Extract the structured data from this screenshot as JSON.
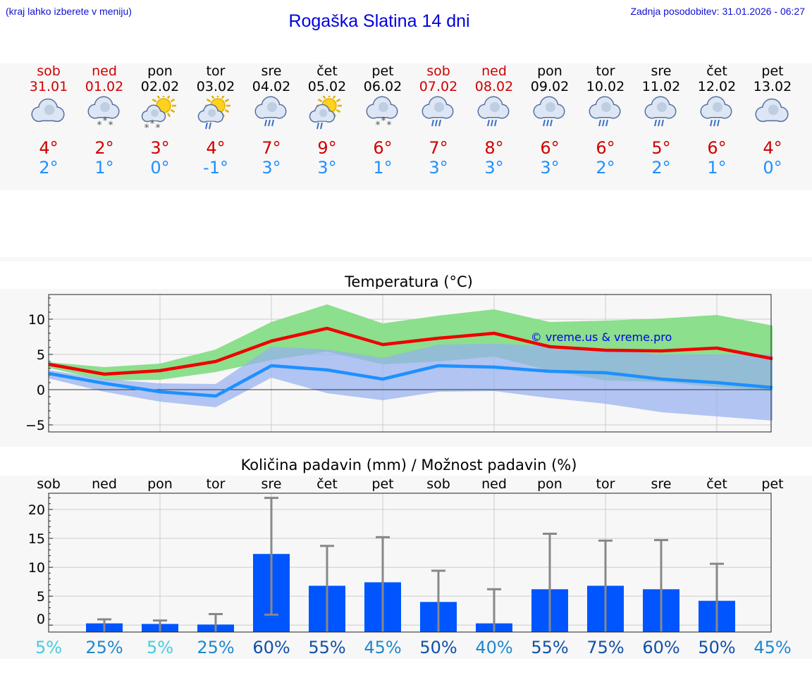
{
  "header": {
    "note": "(kraj lahko izberete v meniju)",
    "title": "Rogaška Slatina 14 dni",
    "updated": "Zadnja posodobitev: 31.01.2026 - 06:27"
  },
  "colors": {
    "weekend": "#d00000",
    "tmax": "#d00000",
    "tmin": "#1e90ff",
    "bar": "#0055ff"
  },
  "days": [
    {
      "name": "sob",
      "date": "31.01",
      "weekend": true,
      "icon": "cloud-icon",
      "tmax": "4°",
      "tmin": "2°"
    },
    {
      "name": "ned",
      "date": "01.02",
      "weekend": true,
      "icon": "cloud-snow-icon",
      "tmax": "2°",
      "tmin": "1°"
    },
    {
      "name": "pon",
      "date": "02.02",
      "weekend": false,
      "icon": "sun-cloud-snow-icon",
      "tmax": "3°",
      "tmin": "0°"
    },
    {
      "name": "tor",
      "date": "03.02",
      "weekend": false,
      "icon": "sun-cloud-rain-icon",
      "tmax": "4°",
      "tmin": "-1°"
    },
    {
      "name": "sre",
      "date": "04.02",
      "weekend": false,
      "icon": "cloud-rain-icon",
      "tmax": "7°",
      "tmin": "3°"
    },
    {
      "name": "čet",
      "date": "05.02",
      "weekend": false,
      "icon": "sun-cloud-rain-icon",
      "tmax": "9°",
      "tmin": "3°"
    },
    {
      "name": "pet",
      "date": "06.02",
      "weekend": false,
      "icon": "cloud-snow-icon",
      "tmax": "6°",
      "tmin": "1°"
    },
    {
      "name": "sob",
      "date": "07.02",
      "weekend": true,
      "icon": "cloud-rain-icon",
      "tmax": "7°",
      "tmin": "3°"
    },
    {
      "name": "ned",
      "date": "08.02",
      "weekend": true,
      "icon": "cloud-rain-icon",
      "tmax": "8°",
      "tmin": "3°"
    },
    {
      "name": "pon",
      "date": "09.02",
      "weekend": false,
      "icon": "cloud-rain-icon",
      "tmax": "6°",
      "tmin": "3°"
    },
    {
      "name": "tor",
      "date": "10.02",
      "weekend": false,
      "icon": "cloud-rain-icon",
      "tmax": "6°",
      "tmin": "2°"
    },
    {
      "name": "sre",
      "date": "11.02",
      "weekend": false,
      "icon": "cloud-rain-icon",
      "tmax": "5°",
      "tmin": "2°"
    },
    {
      "name": "čet",
      "date": "12.02",
      "weekend": false,
      "icon": "cloud-rain-icon",
      "tmax": "6°",
      "tmin": "1°"
    },
    {
      "name": "pet",
      "date": "13.02",
      "weekend": false,
      "icon": "cloud-icon",
      "tmax": "4°",
      "tmin": "0°"
    }
  ],
  "chart_data": [
    {
      "type": "line",
      "title": "Temperatura (°C)",
      "watermark": "© vreme.us & vreme.pro",
      "ylim": [
        -6,
        13.5
      ],
      "yticks": [
        -5,
        0,
        5,
        10
      ],
      "ytick_labels": [
        "−5",
        "0",
        "5",
        "10"
      ],
      "x_index": [
        0,
        1,
        2,
        3,
        4,
        5,
        6,
        7,
        8,
        9,
        10,
        11,
        12,
        13
      ],
      "series": [
        {
          "name": "tmax",
          "color": "#ee0000",
          "values": [
            3.6,
            2.2,
            2.7,
            4.0,
            6.9,
            8.7,
            6.4,
            7.3,
            8.0,
            6.1,
            5.6,
            5.5,
            5.9,
            4.4
          ]
        },
        {
          "name": "tmin",
          "color": "#1e90ff",
          "values": [
            2.3,
            0.9,
            -0.3,
            -0.9,
            3.4,
            2.8,
            1.5,
            3.4,
            3.2,
            2.6,
            2.4,
            1.5,
            1.0,
            0.3
          ]
        }
      ],
      "bands": [
        {
          "name": "tmax-range",
          "color": "#86dd86",
          "upper": [
            3.9,
            3.2,
            3.7,
            5.7,
            9.6,
            12.1,
            9.4,
            10.5,
            11.4,
            9.6,
            9.8,
            10.1,
            10.6,
            9.1
          ],
          "lower": [
            3.1,
            1.3,
            1.4,
            2.5,
            4.2,
            5.4,
            3.6,
            4.0,
            4.7,
            2.7,
            1.3,
            1.1,
            0.4,
            -0.2
          ]
        },
        {
          "name": "tmin-range",
          "color": "#95b0f0",
          "upper": [
            2.8,
            1.5,
            0.9,
            0.8,
            6.1,
            5.7,
            4.5,
            6.4,
            6.5,
            6.2,
            5.7,
            5.0,
            5.0,
            5.0
          ],
          "lower": [
            1.6,
            -0.3,
            -1.7,
            -2.5,
            1.7,
            -0.5,
            -1.5,
            -0.3,
            -0.2,
            -1.2,
            -2.0,
            -3.2,
            -3.8,
            -4.4
          ]
        }
      ]
    },
    {
      "type": "bar",
      "title": "Količina padavin (mm) / Možnost padavin (%)",
      "categories": [
        "sob",
        "ned",
        "pon",
        "tor",
        "sre",
        "čet",
        "pet",
        "sob",
        "ned",
        "pon",
        "tor",
        "sre",
        "čet",
        "pet"
      ],
      "values": [
        0,
        0.3,
        0.2,
        0.1,
        12.3,
        6.8,
        7.4,
        4.0,
        0.3,
        6.2,
        6.8,
        6.2,
        4.2,
        0
      ],
      "error_upper": [
        0,
        1.0,
        0.8,
        1.9,
        22.0,
        13.7,
        15.2,
        9.4,
        6.2,
        15.8,
        14.6,
        14.7,
        10.6,
        0
      ],
      "error_lower": [
        0,
        0,
        0,
        0,
        1.8,
        0,
        0,
        0,
        0,
        0,
        0,
        0,
        0,
        0
      ],
      "ylim": [
        -1.2,
        22.8
      ],
      "yticks": [
        0,
        5,
        10,
        15,
        20
      ],
      "ytick_labels": [
        "0",
        "5",
        "10",
        "15",
        "20"
      ],
      "probability": [
        "5%",
        "25%",
        "5%",
        "25%",
        "60%",
        "55%",
        "45%",
        "50%",
        "40%",
        "55%",
        "75%",
        "60%",
        "50%",
        "45%"
      ],
      "probability_values": [
        5,
        25,
        5,
        25,
        60,
        55,
        45,
        50,
        40,
        55,
        75,
        60,
        50,
        45
      ]
    }
  ]
}
